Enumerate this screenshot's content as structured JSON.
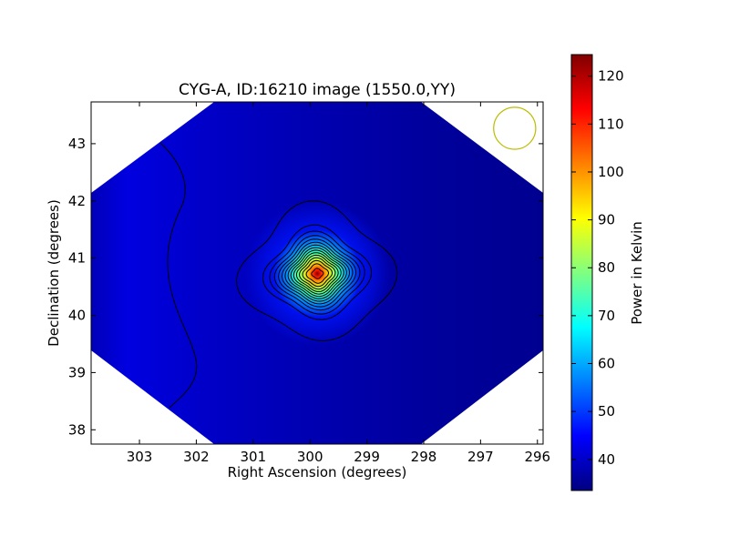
{
  "chart_data": {
    "type": "heatmap",
    "title": "CYG-A, ID:16210 image (1550.0,YY)",
    "xlabel": "Right Ascension (degrees)",
    "ylabel": "Declination (degrees)",
    "xlim": [
      303.85,
      295.9
    ],
    "ylim": [
      37.75,
      43.73
    ],
    "xticks": [
      303,
      302,
      301,
      300,
      299,
      298,
      297,
      296
    ],
    "yticks": [
      38,
      39,
      40,
      41,
      42,
      43
    ],
    "source": {
      "name": "CYG-A",
      "ra": 299.87,
      "dec": 40.73,
      "peak_kelvin": 124.5
    },
    "background_kelvin": 36,
    "contour_levels_kelvin": [
      38,
      44,
      50,
      56,
      62,
      68,
      74,
      80,
      86,
      92,
      98,
      104,
      110,
      116,
      122
    ],
    "beam_marker": {
      "ra": 296.4,
      "dec": 43.27,
      "radius_deg": 0.37,
      "color": "#bcbc00"
    },
    "grid": false,
    "colorbar": {
      "label": "Power in Kelvin",
      "min": 33.5,
      "max": 124.5,
      "ticks": [
        40,
        50,
        60,
        70,
        80,
        90,
        100,
        110,
        120
      ],
      "colormap": "jet"
    }
  }
}
